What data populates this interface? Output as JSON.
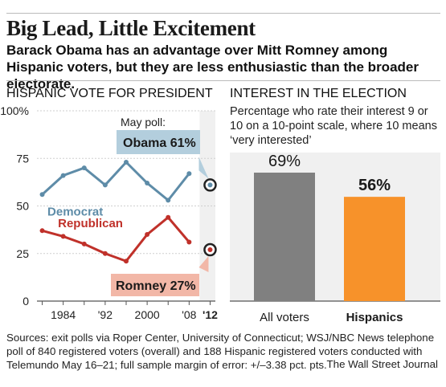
{
  "header": {
    "title": "Big Lead, Little Excitement",
    "subtitle": "Barack Obama has an advantage over Mitt Romney among Hispanic voters, but they are less enthusiastic than the broader electorate."
  },
  "colors": {
    "democrat": "#5e8ca8",
    "republican": "#c0312a",
    "all_voters": "#808080",
    "hispanics": "#f7922a",
    "poll_band": "#f0f0f0",
    "democrat_callout": "#b3cedd",
    "republican_callout": "#f2b7a7"
  },
  "chart_data": [
    {
      "type": "line",
      "title": "HISPANIC VOTE FOR PRESIDENT",
      "x_tick_labels": [
        "1984",
        "'92",
        "2000",
        "'08",
        "'12"
      ],
      "y_tick_labels": [
        "100%",
        "75",
        "50",
        "25",
        "0"
      ],
      "ylim": [
        0,
        100
      ],
      "xlim": [
        1979,
        2013
      ],
      "series": [
        {
          "name": "Democrat",
          "color": "#5e8ca8",
          "x": [
            1980,
            1984,
            1988,
            1992,
            1996,
            2000,
            2004,
            2008
          ],
          "values": [
            56,
            66,
            70,
            61,
            73,
            62,
            53,
            67
          ]
        },
        {
          "name": "Republican",
          "color": "#c0312a",
          "x": [
            1980,
            1984,
            1988,
            1992,
            1996,
            2000,
            2004,
            2008
          ],
          "values": [
            37,
            34,
            30,
            25,
            21,
            35,
            44,
            31
          ]
        }
      ],
      "poll": {
        "label": "May poll:",
        "x": 2012,
        "obama": {
          "label": "Obama 61%",
          "value": 61
        },
        "romney": {
          "label": "Romney 27%",
          "value": 27
        }
      }
    },
    {
      "type": "bar",
      "title": "INTEREST IN THE ELECTION",
      "note": "Percentage who rate their interest 9 or 10 on a 10-point scale, where 10 means ‘very interested’",
      "categories": [
        "All voters",
        "Hispanics"
      ],
      "values": [
        69,
        56
      ],
      "value_labels": [
        "69%",
        "56%"
      ],
      "colors": [
        "#808080",
        "#f7922a"
      ]
    }
  ],
  "footer": {
    "sources": "Sources: exit polls via Roper Center, University of Connecticut; WSJ/NBC News telephone poll of 840 registered voters (overall) and 188 Hispanic registered voters conducted with Telemundo May 16–21; full sample margin of error: +/–3.38 pct. pts.",
    "credit": "The Wall Street Journal"
  }
}
